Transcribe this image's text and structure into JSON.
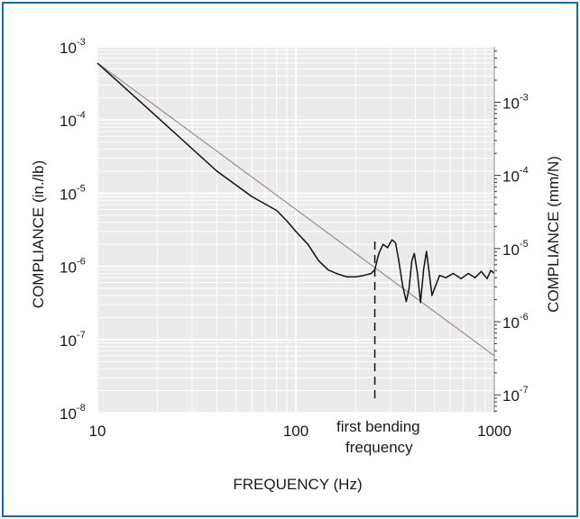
{
  "colors": {
    "frame": "#0a6fb0",
    "plot_background": "#ebebeb",
    "grid": "#ffffff",
    "measured_curve": "#111111",
    "reference_line": "#a08a90",
    "dashed_marker": "#111111"
  },
  "chart_data": {
    "type": "line",
    "title": "",
    "xlabel": "FREQUENCY (Hz)",
    "ylabel": "COMPLIANCE (in./lb)",
    "y2label": "COMPLIANCE (mm/N)",
    "x_scale": "log",
    "y_scale": "log",
    "xlim": [
      10,
      1000
    ],
    "ylim": [
      1e-08,
      0.001
    ],
    "y2lim": [
      5.71e-08,
      0.00571
    ],
    "grid": true,
    "x_ticks": [
      {
        "value": 10,
        "label": "10"
      },
      {
        "value": 100,
        "label": "100"
      },
      {
        "value": 1000,
        "label": "1000"
      }
    ],
    "y_ticks": [
      {
        "value": 1e-08,
        "base": "10",
        "exp": "-8"
      },
      {
        "value": 1e-07,
        "base": "10",
        "exp": "-7"
      },
      {
        "value": 1e-06,
        "base": "10",
        "exp": "-6"
      },
      {
        "value": 1e-05,
        "base": "10",
        "exp": "-5"
      },
      {
        "value": 0.0001,
        "base": "10",
        "exp": "-4"
      },
      {
        "value": 0.001,
        "base": "10",
        "exp": "-3"
      }
    ],
    "y2_ticks": [
      {
        "value": 1e-07,
        "base": "10",
        "exp": "-7"
      },
      {
        "value": 1e-06,
        "base": "10",
        "exp": "-6"
      },
      {
        "value": 1e-05,
        "base": "10",
        "exp": "-5"
      },
      {
        "value": 0.0001,
        "base": "10",
        "exp": "-4"
      },
      {
        "value": 0.001,
        "base": "10",
        "exp": "-3"
      }
    ],
    "series": [
      {
        "x": [
          10,
          20,
          40,
          60,
          80,
          90,
          100,
          115,
          130,
          145,
          160,
          180,
          200,
          220,
          240,
          250,
          262,
          275,
          290,
          305,
          318,
          330,
          345,
          360,
          372,
          384,
          395,
          410,
          425,
          440,
          455,
          470,
          485,
          500,
          530,
          570,
          620,
          680,
          740,
          800,
          860,
          920,
          960,
          1000
        ],
        "y": [
          0.0006,
          0.00011,
          2e-05,
          9e-06,
          5.8e-06,
          4.2e-06,
          3e-06,
          2e-06,
          1.2e-06,
          9e-07,
          8e-07,
          7.2e-07,
          7.2e-07,
          7.5e-07,
          8e-07,
          9e-07,
          1.5e-06,
          2e-06,
          1.8e-06,
          2.3e-06,
          2.1e-06,
          1.2e-06,
          5.5e-07,
          3.3e-07,
          5e-07,
          1.2e-06,
          1.5e-06,
          8e-07,
          3.2e-07,
          9e-07,
          1.6e-06,
          8e-07,
          4e-07,
          5e-07,
          7.5e-07,
          7e-07,
          8e-07,
          6.8e-07,
          8e-07,
          7e-07,
          8.5e-07,
          6.8e-07,
          8.8e-07,
          8e-07
        ]
      },
      {
        "x": [
          10,
          1000
        ],
        "y": [
          0.0006,
          6e-08
        ]
      }
    ],
    "annotations": [
      {
        "text_line1": "first bending",
        "text_line2": "frequency",
        "x": 250
      }
    ]
  }
}
